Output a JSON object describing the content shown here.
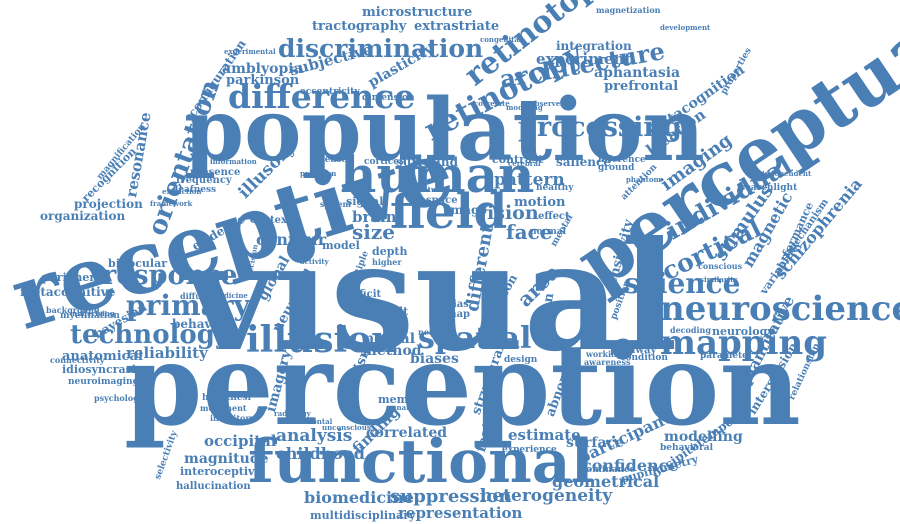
{
  "color": "#4a7fb5",
  "words": [
    {
      "id": "visual",
      "text": "visual"
    },
    {
      "id": "perception",
      "text": "perception"
    },
    {
      "id": "population",
      "text": "population"
    },
    {
      "id": "receptive",
      "text": "receptive"
    },
    {
      "id": "perceptual",
      "text": "perceptual"
    },
    {
      "id": "functional",
      "text": "functional"
    },
    {
      "id": "human",
      "text": "human"
    },
    {
      "id": "field",
      "text": "field"
    },
    {
      "id": "illusion",
      "text": "illusion"
    },
    {
      "id": "neuroscience",
      "text": "neuroscience"
    },
    {
      "id": "mapping",
      "text": "mapping"
    },
    {
      "id": "difference",
      "text": "difference"
    },
    {
      "id": "retinotopy",
      "text": "retinotopy"
    },
    {
      "id": "retinotopic",
      "text": "retinotopic"
    },
    {
      "id": "discrimination",
      "text": "discrimination"
    },
    {
      "id": "architecture",
      "text": "architecture"
    },
    {
      "id": "processing",
      "text": "processing"
    },
    {
      "id": "primary",
      "text": "primary"
    },
    {
      "id": "response",
      "text": "response"
    },
    {
      "id": "technology",
      "text": "technology"
    },
    {
      "id": "spatial",
      "text": "spatial"
    },
    {
      "id": "science",
      "text": "science"
    },
    {
      "id": "cortical",
      "text": "cortical"
    },
    {
      "id": "individual",
      "text": "individual"
    },
    {
      "id": "orientation",
      "text": "orientation"
    },
    {
      "id": "suppression",
      "text": "suppression"
    },
    {
      "id": "representation",
      "text": "representation"
    },
    {
      "id": "heterogeneity",
      "text": "heterogeneity"
    },
    {
      "id": "biomedicine",
      "text": "biomedicine"
    },
    {
      "id": "multidisciplinary",
      "text": "multidisciplinary"
    },
    {
      "id": "analysis",
      "text": "analysis"
    },
    {
      "id": "childhood",
      "text": "childhood"
    },
    {
      "id": "occipital",
      "text": "occipital"
    },
    {
      "id": "magnitude",
      "text": "magnitude"
    },
    {
      "id": "interoceptive",
      "text": "interoceptive"
    },
    {
      "id": "hallucination",
      "text": "hallucination"
    },
    {
      "id": "reliability",
      "text": "reliability"
    },
    {
      "id": "anatomical",
      "text": "anatomical"
    },
    {
      "id": "idiosyncrasies",
      "text": "idiosyncrasies"
    },
    {
      "id": "neuroimaging",
      "text": "neuroimaging"
    },
    {
      "id": "psychology",
      "text": "psychology"
    },
    {
      "id": "metacognitive",
      "text": "metacognitive"
    },
    {
      "id": "peripheral",
      "text": "peripheral"
    },
    {
      "id": "binocular",
      "text": "binocular"
    },
    {
      "id": "organization",
      "text": "organization"
    },
    {
      "id": "projection",
      "text": "projection"
    },
    {
      "id": "recognition",
      "text": "recognition"
    },
    {
      "id": "resonance",
      "text": "resonance"
    },
    {
      "id": "microstructure",
      "text": "microstructure"
    },
    {
      "id": "tractography",
      "text": "tractography"
    },
    {
      "id": "extrastriate",
      "text": "extrastriate"
    },
    {
      "id": "experiment",
      "text": "experiment"
    },
    {
      "id": "integration",
      "text": "integration"
    },
    {
      "id": "aphantasia",
      "text": "aphantasia"
    },
    {
      "id": "prefrontal",
      "text": "prefrontal"
    },
    {
      "id": "metacognition",
      "text": "metacognition"
    },
    {
      "id": "location",
      "text": "location"
    },
    {
      "id": "imaging",
      "text": "imaging"
    },
    {
      "id": "stimulus",
      "text": "stimulus"
    },
    {
      "id": "magnetic",
      "text": "magnetic"
    },
    {
      "id": "schizophrenia",
      "text": "schizophrenia"
    },
    {
      "id": "quantitative",
      "text": "quantitative"
    },
    {
      "id": "intersession",
      "text": "intersession"
    },
    {
      "id": "occipitotemporal",
      "text": "occipitotemporal"
    },
    {
      "id": "pupillometry",
      "text": "pupillometry"
    },
    {
      "id": "modelling",
      "text": "modelling"
    },
    {
      "id": "participant",
      "text": "participant"
    },
    {
      "id": "confidence",
      "text": "confidence"
    },
    {
      "id": "geometrical",
      "text": "geometrical"
    },
    {
      "id": "surface",
      "text": "surface"
    },
    {
      "id": "estimate",
      "text": "estimate"
    },
    {
      "id": "correlated",
      "text": "correlated"
    },
    {
      "id": "finding",
      "text": "finding"
    },
    {
      "id": "memory",
      "text": "memory"
    },
    {
      "id": "imagery",
      "text": "imagery"
    },
    {
      "id": "neuronal",
      "text": "neuronal"
    },
    {
      "id": "global",
      "text": "global"
    },
    {
      "id": "contour",
      "text": "contour"
    },
    {
      "id": "size",
      "text": "size"
    },
    {
      "id": "brain",
      "text": "brain"
    },
    {
      "id": "vision",
      "text": "vision"
    },
    {
      "id": "face",
      "text": "face"
    },
    {
      "id": "motion",
      "text": "motion"
    },
    {
      "id": "pattern",
      "text": "pattern"
    },
    {
      "id": "amblyopia",
      "text": "amblyopia"
    },
    {
      "id": "parkinson",
      "text": "parkinson"
    },
    {
      "id": "subjective",
      "text": "subjective"
    },
    {
      "id": "plasticity",
      "text": "plasticity"
    },
    {
      "id": "illusory",
      "text": "illusory"
    },
    {
      "id": "evidence",
      "text": "evidence"
    },
    {
      "id": "behavior",
      "text": "behavior"
    },
    {
      "id": "bayesian",
      "text": "bayesian"
    },
    {
      "id": "method",
      "text": "method"
    },
    {
      "id": "neural",
      "text": "neural"
    },
    {
      "id": "biases",
      "text": "biases"
    },
    {
      "id": "different",
      "text": "different"
    },
    {
      "id": "area",
      "text": "area"
    },
    {
      "id": "feature",
      "text": "feature"
    },
    {
      "id": "structural",
      "text": "structural"
    },
    {
      "id": "abnormal",
      "text": "abnormal"
    },
    {
      "id": "fixation",
      "text": "fixation"
    },
    {
      "id": "sensitivity",
      "text": "sensitivity"
    },
    {
      "id": "surround",
      "text": "surround"
    },
    {
      "id": "contrast",
      "text": "contrast"
    },
    {
      "id": "salience",
      "text": "salience"
    },
    {
      "id": "configuration",
      "text": "configuration"
    },
    {
      "id": "eccentricity",
      "text": "eccentricity"
    },
    {
      "id": "dimension",
      "text": "dimension"
    },
    {
      "id": "magnetization",
      "text": "magnetization"
    },
    {
      "id": "attention",
      "text": "attention"
    },
    {
      "id": "image",
      "text": "image"
    },
    {
      "id": "signal",
      "text": "signal"
    },
    {
      "id": "deficit",
      "text": "deficit"
    },
    {
      "id": "result",
      "text": "result"
    },
    {
      "id": "albinism",
      "text": "albinism"
    },
    {
      "id": "context",
      "text": "context"
    },
    {
      "id": "presence",
      "text": "presence"
    },
    {
      "id": "frequency",
      "text": "frequency"
    },
    {
      "id": "deafness",
      "text": "deafness"
    },
    {
      "id": "myelination",
      "text": "myelination"
    },
    {
      "id": "selectivity",
      "text": "selectivity"
    },
    {
      "id": "magnification",
      "text": "magnification"
    },
    {
      "id": "background",
      "text": "background"
    },
    {
      "id": "connectivity",
      "text": "connectivity"
    },
    {
      "id": "neurology",
      "text": "neurology"
    },
    {
      "id": "decoding",
      "text": "decoding"
    },
    {
      "id": "conscious",
      "text": "conscious"
    },
    {
      "id": "variability",
      "text": "variability"
    },
    {
      "id": "performance",
      "text": "performance"
    },
    {
      "id": "mechanism",
      "text": "mechanism"
    },
    {
      "id": "searchlight",
      "text": "searchlight"
    },
    {
      "id": "properties",
      "text": "properties"
    },
    {
      "id": "relationship",
      "text": "relationship"
    },
    {
      "id": "parameter",
      "text": "parameter"
    },
    {
      "id": "condition",
      "text": "condition"
    },
    {
      "id": "pathway",
      "text": "pathway"
    },
    {
      "id": "working",
      "text": "working"
    },
    {
      "id": "awareness",
      "text": "awareness"
    },
    {
      "id": "design",
      "text": "design"
    },
    {
      "id": "dominance",
      "text": "dominance"
    },
    {
      "id": "behavioral",
      "text": "behavioral"
    },
    {
      "id": "experience",
      "text": "experience"
    },
    {
      "id": "hypothesi",
      "text": "hypothesi"
    },
    {
      "id": "movement",
      "text": "movement"
    },
    {
      "id": "inhibitory",
      "text": "inhibitory"
    },
    {
      "id": "diffusion",
      "text": "diffusion"
    },
    {
      "id": "cortices",
      "text": "cortices"
    },
    {
      "id": "disease",
      "text": "disease"
    },
    {
      "id": "healthy",
      "text": "healthy"
    },
    {
      "id": "effect",
      "text": "effect"
    },
    {
      "id": "normal",
      "text": "normal"
    },
    {
      "id": "mental",
      "text": "mental"
    },
    {
      "id": "position",
      "text": "position"
    },
    {
      "id": "ground",
      "text": "ground"
    },
    {
      "id": "inference",
      "text": "inference"
    },
    {
      "id": "depth",
      "text": "depth"
    },
    {
      "id": "model",
      "text": "model"
    },
    {
      "id": "space",
      "text": "space"
    },
    {
      "id": "map",
      "text": "map"
    },
    {
      "id": "bias",
      "text": "bias"
    },
    {
      "id": "person",
      "text": "person"
    },
    {
      "id": "sensory",
      "text": "sensory"
    },
    {
      "id": "neuron",
      "text": "neuron"
    },
    {
      "id": "development",
      "text": "development"
    },
    {
      "id": "experimental",
      "text": "experimental"
    },
    {
      "id": "underlying",
      "text": "underlying"
    },
    {
      "id": "information",
      "text": "information"
    },
    {
      "id": "extinction",
      "text": "extinction"
    },
    {
      "id": "framework",
      "text": "framework"
    },
    {
      "id": "precision",
      "text": "precision"
    },
    {
      "id": "natural",
      "text": "natural"
    },
    {
      "id": "system",
      "text": "system"
    },
    {
      "id": "modeling",
      "text": "modeling"
    },
    {
      "id": "correlate",
      "text": "correlate"
    },
    {
      "id": "cerebral",
      "text": "cerebral"
    },
    {
      "id": "observer",
      "text": "observer"
    },
    {
      "id": "phantom",
      "text": "phantom"
    },
    {
      "id": "congenital",
      "text": "congenital"
    },
    {
      "id": "similarity",
      "text": "similarity"
    },
    {
      "id": "independent",
      "text": "independent"
    },
    {
      "id": "decision",
      "text": "decision"
    },
    {
      "id": "higher",
      "text": "higher"
    },
    {
      "id": "multiple",
      "text": "multiple"
    },
    {
      "id": "anatomy",
      "text": "anatomy"
    },
    {
      "id": "radiology",
      "text": "radiology"
    },
    {
      "id": "horizontal",
      "text": "horizontal"
    },
    {
      "id": "unconscious",
      "text": "unconscious"
    },
    {
      "id": "activity",
      "text": "activity"
    },
    {
      "id": "medicine",
      "text": "medicine"
    }
  ]
}
